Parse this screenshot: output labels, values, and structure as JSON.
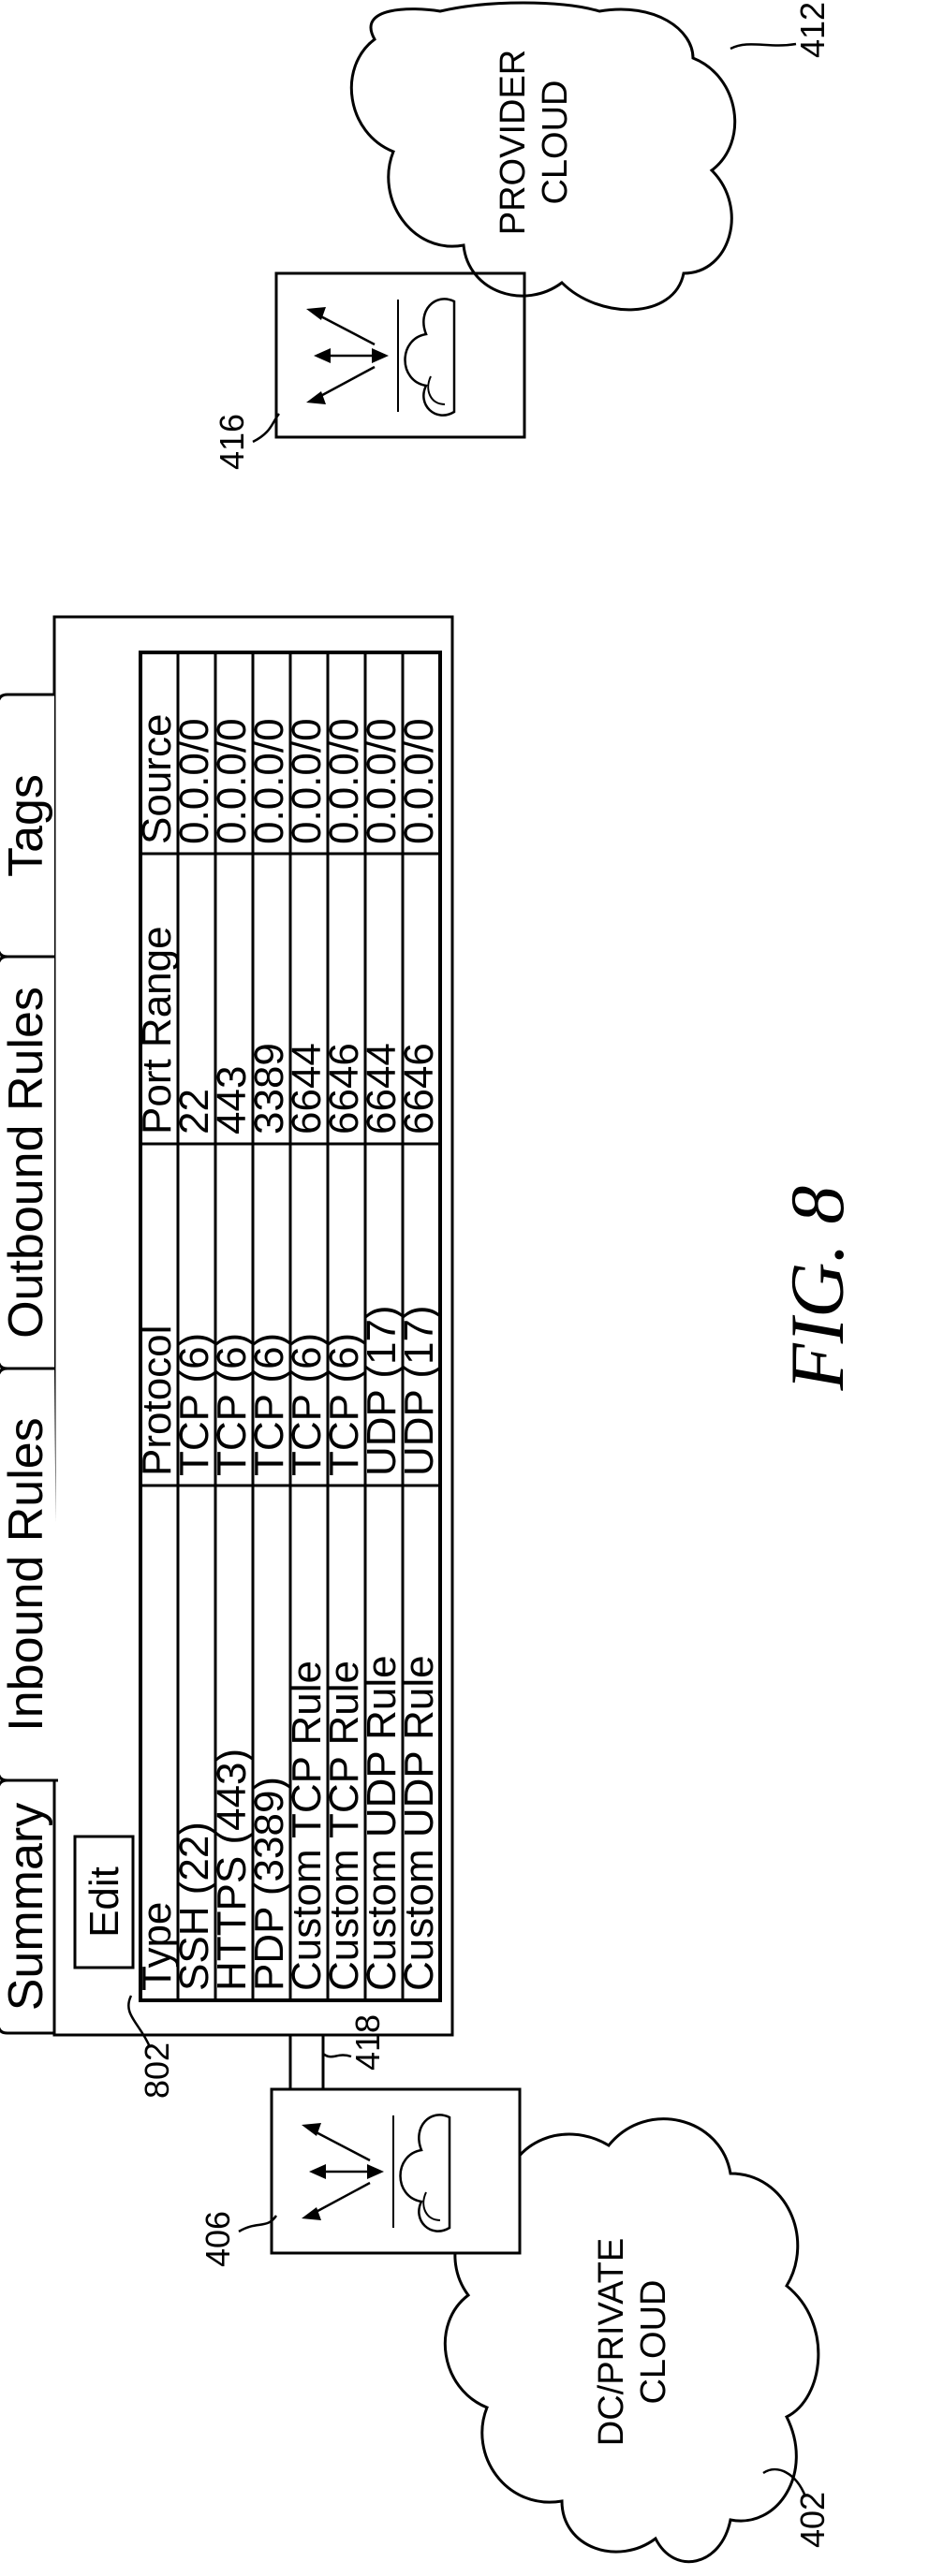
{
  "figure_label": "FIG. 8",
  "refs": {
    "private_cloud": "402",
    "private_gateway": "406",
    "provider_cloud": "412",
    "provider_gateway": "416",
    "link": "418",
    "panel": "802"
  },
  "clouds": {
    "private": [
      "DC/PRIVATE",
      "CLOUD"
    ],
    "provider": [
      "PROVIDER",
      "CLOUD"
    ]
  },
  "tabs": [
    {
      "label": "Summary"
    },
    {
      "label": "Inbound Rules"
    },
    {
      "label": "Outbound Rules"
    },
    {
      "label": "Tags"
    }
  ],
  "edit_label": "Edit",
  "table": {
    "headers": [
      "Type",
      "Protocol",
      "Port Range",
      "Source"
    ],
    "rows": [
      [
        "SSH (22)",
        "TCP (6)",
        "22",
        "0.0.0/0"
      ],
      [
        "HTTPS (443)",
        "TCP (6)",
        "443",
        "0.0.0/0"
      ],
      [
        "PDP (3389)",
        "TCP (6)",
        "3389",
        "0.0.0/0"
      ],
      [
        "Custom TCP Rule",
        "TCP (6)",
        "6644",
        "0.0.0/0"
      ],
      [
        "Custom TCP Rule",
        "TCP (6)",
        "6646",
        "0.0.0/0"
      ],
      [
        "Custom UDP Rule",
        "UDP (17)",
        "6644",
        "0.0.0/0"
      ],
      [
        "Custom UDP Rule",
        "UDP (17)",
        "6646",
        "0.0.0/0"
      ]
    ]
  }
}
